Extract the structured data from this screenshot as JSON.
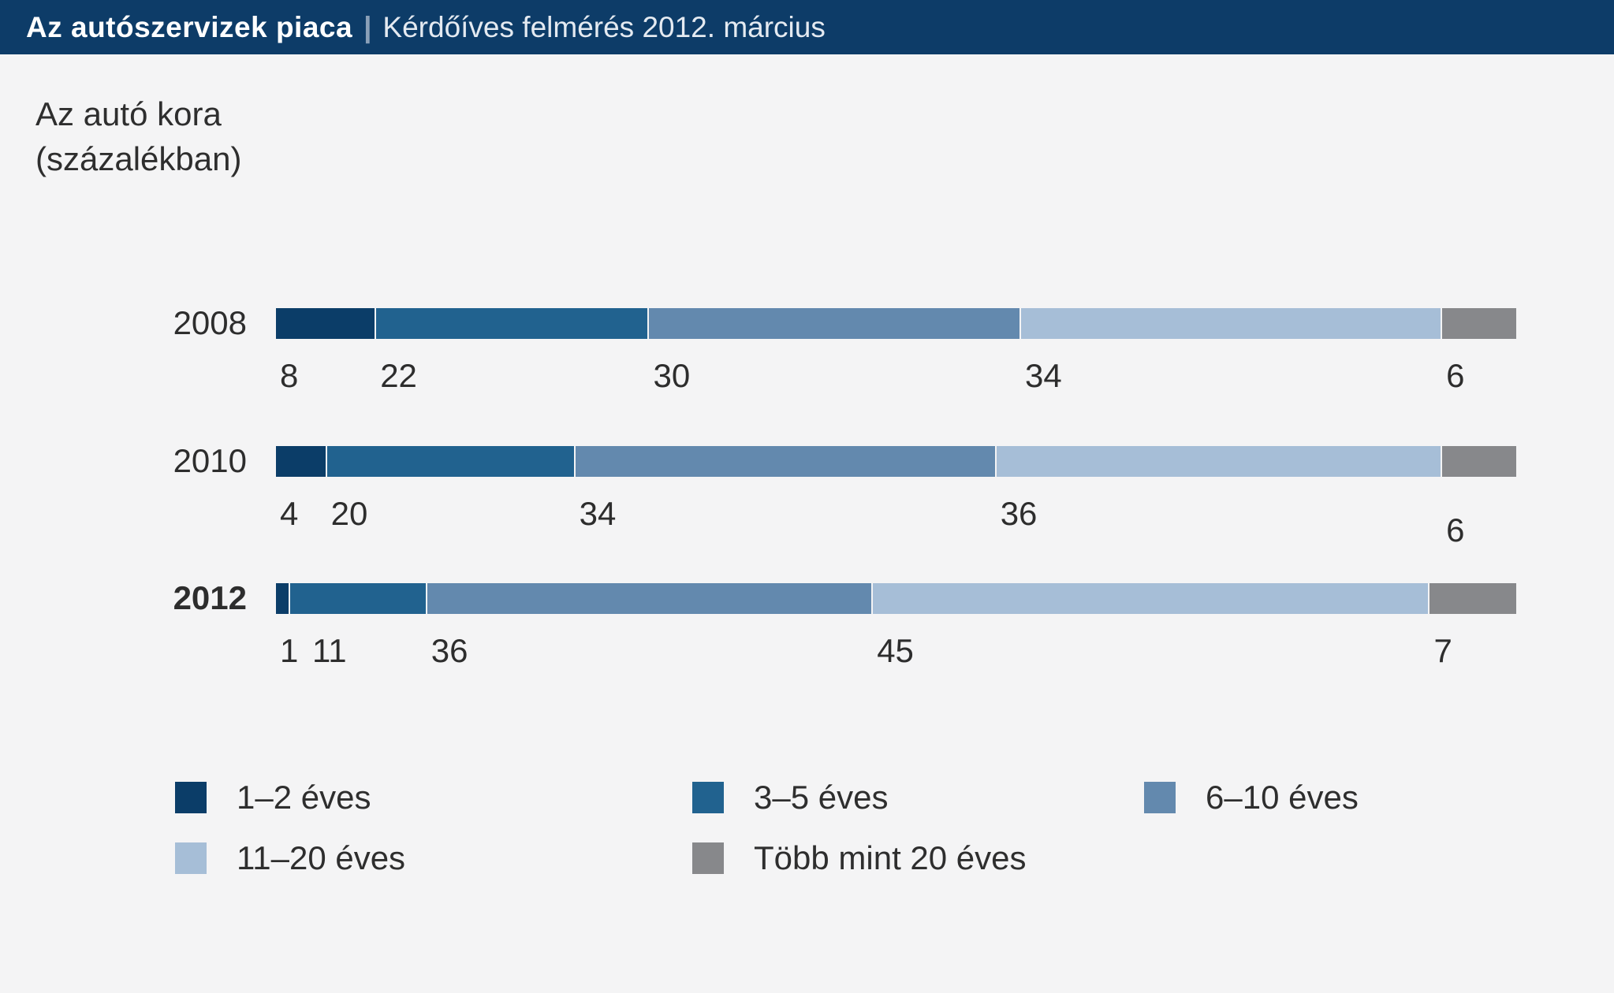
{
  "header": {
    "title_bold": "Az autószervizek piaca",
    "separator": "|",
    "subtitle": "Kérdőíves felmérés 2012. március"
  },
  "chart_title": {
    "line1": "Az autó kora",
    "line2": "(százalékban)"
  },
  "chart_data": {
    "type": "bar",
    "orientation": "horizontal-stacked",
    "unit": "percent",
    "title": "Az autó kora (százalékban)",
    "categories": [
      "2008",
      "2010",
      "2012"
    ],
    "highlighted_category": "2012",
    "series": [
      {
        "name": "1–2 éves",
        "color": "#0b3d68",
        "values": [
          8,
          4,
          1
        ]
      },
      {
        "name": "3–5 éves",
        "color": "#21628f",
        "values": [
          22,
          20,
          11
        ]
      },
      {
        "name": "6–10 éves",
        "color": "#6389ae",
        "values": [
          30,
          34,
          36
        ]
      },
      {
        "name": "11–20 éves",
        "color": "#a6bed7",
        "values": [
          34,
          36,
          45
        ]
      },
      {
        "name": "Több mint 20 éves",
        "color": "#87888b",
        "values": [
          6,
          6,
          7
        ]
      }
    ],
    "xlim": [
      0,
      100
    ],
    "value_labels": true,
    "grid": false,
    "legend_position": "bottom"
  },
  "colors": {
    "page_bg": "#f4f4f5",
    "header_bg": "#0d3c68",
    "header_text": "#ffffff",
    "header_subtext": "#e4eaf1",
    "text": "#2e2e2e"
  }
}
